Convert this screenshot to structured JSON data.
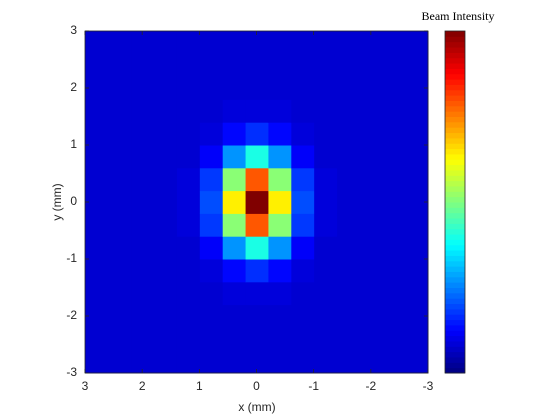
{
  "chart_data": {
    "type": "heatmap",
    "colorbar_title": "Beam Intensity",
    "xlabel": "x (mm)",
    "ylabel": "y (mm)",
    "colormap": "jet",
    "xlim": [
      3,
      -3
    ],
    "ylim": [
      -3,
      3
    ],
    "xticks": [
      3,
      2,
      1,
      0,
      -1,
      -2,
      -3
    ],
    "yticks": [
      -3,
      -2,
      -1,
      0,
      1,
      2,
      3
    ],
    "x": [
      -2.8,
      -2.4,
      -2.0,
      -1.6,
      -1.2,
      -0.8,
      -0.4,
      0,
      0.4,
      0.8,
      1.2,
      1.6,
      2.0,
      2.4,
      2.8
    ],
    "y": [
      -2.8,
      -2.4,
      -2.0,
      -1.6,
      -1.2,
      -0.8,
      -0.4,
      0,
      0.4,
      0.8,
      1.2,
      1.6,
      2.0,
      2.4,
      2.8
    ],
    "z": [
      [
        0.08,
        0.08,
        0.08,
        0.08,
        0.08,
        0.08,
        0.08,
        0.08,
        0.08,
        0.08,
        0.08,
        0.08,
        0.08,
        0.08,
        0.08
      ],
      [
        0.08,
        0.08,
        0.08,
        0.08,
        0.08,
        0.08,
        0.08,
        0.08,
        0.08,
        0.08,
        0.08,
        0.08,
        0.08,
        0.08,
        0.08
      ],
      [
        0.08,
        0.08,
        0.08,
        0.08,
        0.08,
        0.08,
        0.08,
        0.08,
        0.08,
        0.08,
        0.08,
        0.08,
        0.08,
        0.08,
        0.08
      ],
      [
        0.08,
        0.08,
        0.08,
        0.08,
        0.08,
        0.08,
        0.09,
        0.09,
        0.09,
        0.08,
        0.08,
        0.08,
        0.08,
        0.08,
        0.08
      ],
      [
        0.08,
        0.08,
        0.08,
        0.08,
        0.08,
        0.09,
        0.13,
        0.17,
        0.13,
        0.09,
        0.08,
        0.08,
        0.08,
        0.08,
        0.08
      ],
      [
        0.08,
        0.08,
        0.08,
        0.08,
        0.08,
        0.12,
        0.27,
        0.4,
        0.27,
        0.12,
        0.08,
        0.08,
        0.08,
        0.08,
        0.08
      ],
      [
        0.08,
        0.08,
        0.08,
        0.08,
        0.09,
        0.18,
        0.51,
        0.79,
        0.51,
        0.18,
        0.09,
        0.08,
        0.08,
        0.08,
        0.08
      ],
      [
        0.08,
        0.08,
        0.08,
        0.08,
        0.09,
        0.2,
        0.64,
        1,
        0.64,
        0.2,
        0.09,
        0.08,
        0.08,
        0.08,
        0.08
      ],
      [
        0.08,
        0.08,
        0.08,
        0.08,
        0.09,
        0.18,
        0.51,
        0.79,
        0.51,
        0.18,
        0.09,
        0.08,
        0.08,
        0.08,
        0.08
      ],
      [
        0.08,
        0.08,
        0.08,
        0.08,
        0.08,
        0.12,
        0.27,
        0.4,
        0.27,
        0.12,
        0.08,
        0.08,
        0.08,
        0.08,
        0.08
      ],
      [
        0.08,
        0.08,
        0.08,
        0.08,
        0.08,
        0.09,
        0.13,
        0.17,
        0.13,
        0.09,
        0.08,
        0.08,
        0.08,
        0.08,
        0.08
      ],
      [
        0.08,
        0.08,
        0.08,
        0.08,
        0.08,
        0.08,
        0.09,
        0.09,
        0.09,
        0.08,
        0.08,
        0.08,
        0.08,
        0.08,
        0.08
      ],
      [
        0.08,
        0.08,
        0.08,
        0.08,
        0.08,
        0.08,
        0.08,
        0.08,
        0.08,
        0.08,
        0.08,
        0.08,
        0.08,
        0.08,
        0.08
      ],
      [
        0.08,
        0.08,
        0.08,
        0.08,
        0.08,
        0.08,
        0.08,
        0.08,
        0.08,
        0.08,
        0.08,
        0.08,
        0.08,
        0.08,
        0.08
      ],
      [
        0.08,
        0.08,
        0.08,
        0.08,
        0.08,
        0.08,
        0.08,
        0.08,
        0.08,
        0.08,
        0.08,
        0.08,
        0.08,
        0.08,
        0.08
      ]
    ]
  }
}
